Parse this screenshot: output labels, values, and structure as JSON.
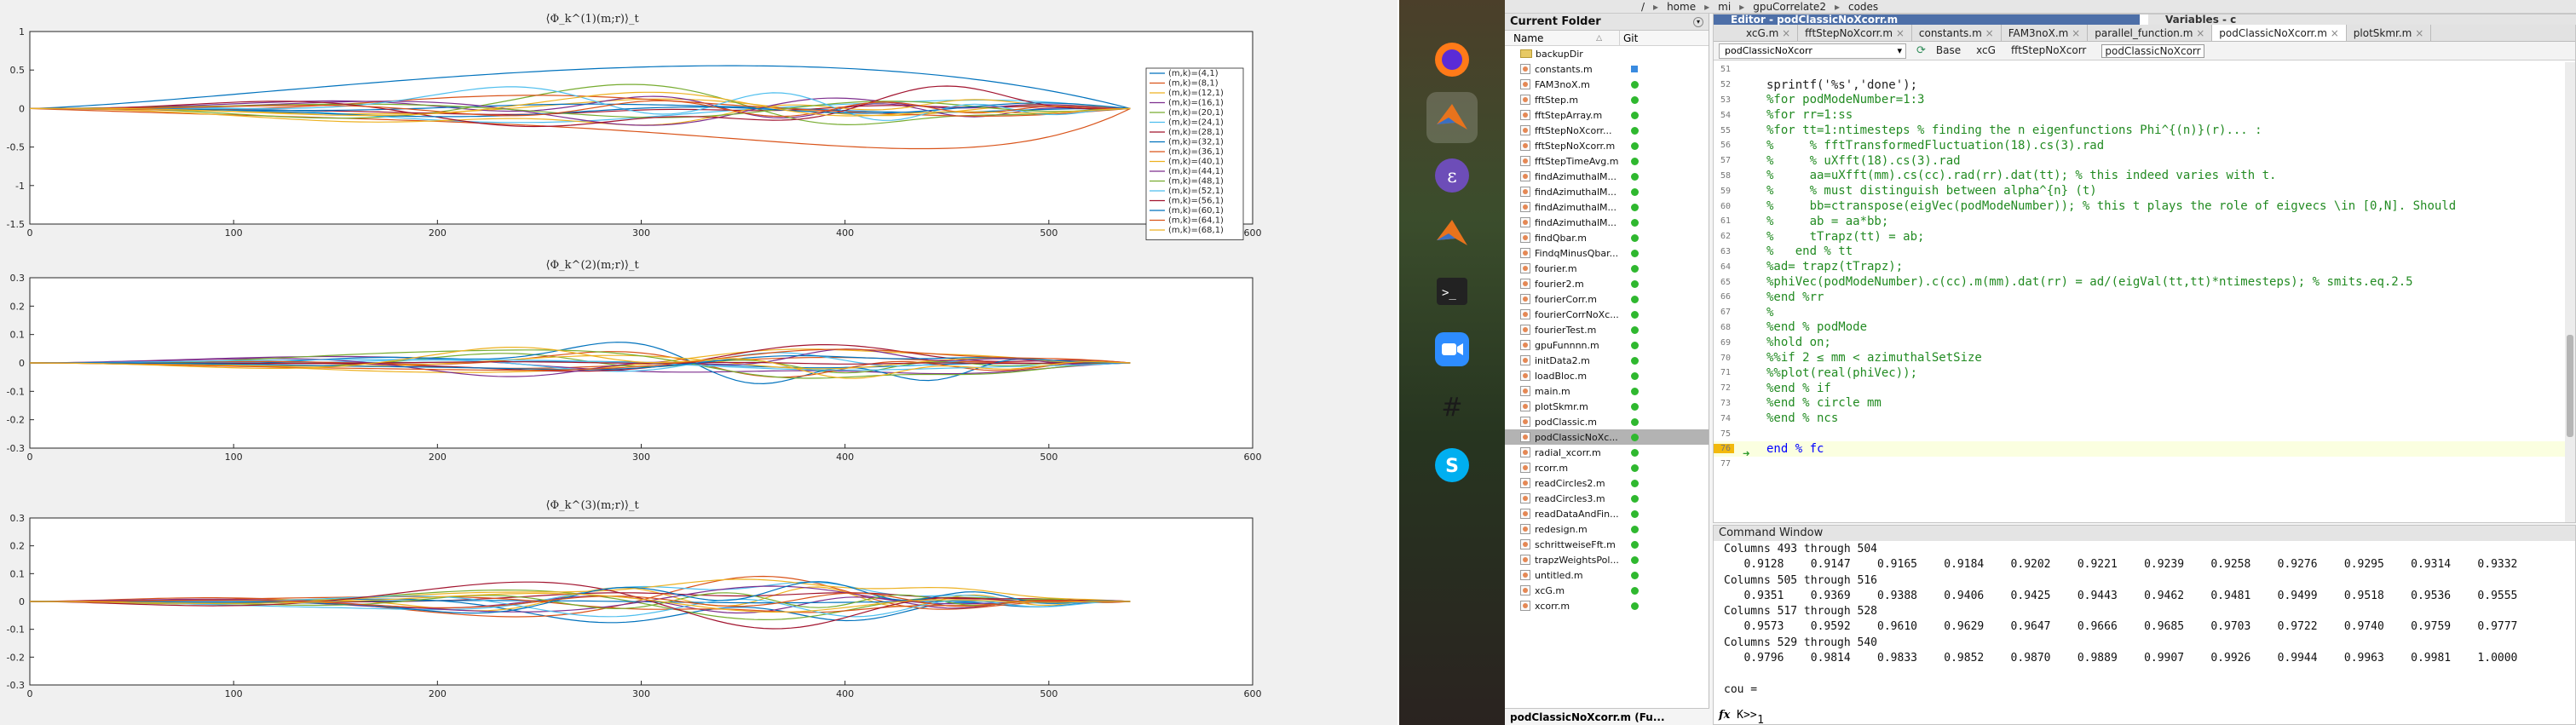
{
  "figure": {
    "axes": [
      {
        "title": "⟨Φ_k^(1)(m;r)⟩_t",
        "yticks": [
          "1",
          "0.5",
          "0",
          "-0.5",
          "-1",
          "-1.5"
        ],
        "xticks": [
          "0",
          "100",
          "200",
          "300",
          "400",
          "500",
          "600"
        ]
      },
      {
        "title": "⟨Φ_k^(2)(m;r)⟩_t",
        "yticks": [
          "0.3",
          "0.2",
          "0.1",
          "0",
          "-0.1",
          "-0.2",
          "-0.3"
        ],
        "xticks": [
          "0",
          "100",
          "200",
          "300",
          "400",
          "500",
          "600"
        ]
      },
      {
        "title": "⟨Φ_k^(3)(m;r)⟩_t",
        "yticks": [
          "0.3",
          "0.2",
          "0.1",
          "0",
          "-0.1",
          "-0.2",
          "-0.3"
        ],
        "xticks": [
          "0",
          "100",
          "200",
          "300",
          "400",
          "500",
          "600"
        ]
      }
    ],
    "legend": [
      "(m,k)=(4,1)",
      "(m,k)=(8,1)",
      "(m,k)=(12,1)",
      "(m,k)=(16,1)",
      "(m,k)=(20,1)",
      "(m,k)=(24,1)",
      "(m,k)=(28,1)",
      "(m,k)=(32,1)",
      "(m,k)=(36,1)",
      "(m,k)=(40,1)",
      "(m,k)=(44,1)",
      "(m,k)=(48,1)",
      "(m,k)=(52,1)",
      "(m,k)=(56,1)",
      "(m,k)=(60,1)",
      "(m,k)=(64,1)",
      "(m,k)=(68,1)"
    ],
    "series_colors": [
      "#0072bd",
      "#d95319",
      "#edb120",
      "#7e2f8e",
      "#77ac30",
      "#4dbeee",
      "#a2142f",
      "#0072bd",
      "#d95319",
      "#edb120",
      "#7e2f8e",
      "#77ac30",
      "#4dbeee",
      "#a2142f",
      "#0072bd",
      "#d95319",
      "#edb120"
    ]
  },
  "dock": {
    "icons": [
      "firefox-icon",
      "matlab-icon",
      "emacs-icon",
      "matlab-icon-2",
      "terminal-icon",
      "zoom-icon",
      "slack-icon",
      "skype-icon"
    ]
  },
  "addressbar": {
    "crumbs": [
      "/",
      "home",
      "mi",
      "gpuCorrelate2",
      "codes"
    ]
  },
  "folder": {
    "title": "Current Folder",
    "col_name": "Name",
    "col_git": "Git",
    "sort_indicator": "△",
    "footer": "podClassicNoXcorr.m (Fu...",
    "files": [
      {
        "name": "backupDir",
        "type": "folder",
        "git": "none"
      },
      {
        "name": "constants.m",
        "type": "file",
        "git": "modified"
      },
      {
        "name": "FAM3noX.m",
        "type": "file",
        "git": "ok"
      },
      {
        "name": "fftStep.m",
        "type": "file",
        "git": "ok"
      },
      {
        "name": "fftStepArray.m",
        "type": "file",
        "git": "ok"
      },
      {
        "name": "fftStepNoXcorr...",
        "type": "file",
        "git": "ok"
      },
      {
        "name": "fftStepNoXcorr.m",
        "type": "file",
        "git": "ok"
      },
      {
        "name": "fftStepTimeAvg.m",
        "type": "file",
        "git": "ok"
      },
      {
        "name": "findAzimuthalM...",
        "type": "file",
        "git": "ok"
      },
      {
        "name": "findAzimuthalM...",
        "type": "file",
        "git": "ok"
      },
      {
        "name": "findAzimuthalM...",
        "type": "file",
        "git": "ok"
      },
      {
        "name": "findAzimuthalM...",
        "type": "file",
        "git": "ok"
      },
      {
        "name": "findQbar.m",
        "type": "file",
        "git": "ok"
      },
      {
        "name": "FindqMinusQbar...",
        "type": "file",
        "git": "ok"
      },
      {
        "name": "fourier.m",
        "type": "file",
        "git": "ok"
      },
      {
        "name": "fourier2.m",
        "type": "file",
        "git": "ok"
      },
      {
        "name": "fourierCorr.m",
        "type": "file",
        "git": "ok"
      },
      {
        "name": "fourierCorrNoXc...",
        "type": "file",
        "git": "ok"
      },
      {
        "name": "fourierTest.m",
        "type": "file",
        "git": "ok"
      },
      {
        "name": "gpuFunnnn.m",
        "type": "file",
        "git": "ok"
      },
      {
        "name": "initData2.m",
        "type": "file",
        "git": "ok"
      },
      {
        "name": "loadBloc.m",
        "type": "file",
        "git": "ok"
      },
      {
        "name": "main.m",
        "type": "file",
        "git": "ok"
      },
      {
        "name": "plotSkmr.m",
        "type": "file",
        "git": "ok"
      },
      {
        "name": "podClassic.m",
        "type": "file",
        "git": "ok"
      },
      {
        "name": "podClassicNoXc...",
        "type": "file",
        "git": "ok",
        "selected": true
      },
      {
        "name": "radial_xcorr.m",
        "type": "file",
        "git": "ok"
      },
      {
        "name": "rcorr.m",
        "type": "file",
        "git": "ok"
      },
      {
        "name": "readCircles2.m",
        "type": "file",
        "git": "ok"
      },
      {
        "name": "readCircles3.m",
        "type": "file",
        "git": "ok"
      },
      {
        "name": "readDataAndFin...",
        "type": "file",
        "git": "ok"
      },
      {
        "name": "redesign.m",
        "type": "file",
        "git": "ok"
      },
      {
        "name": "schrittweiseFft.m",
        "type": "file",
        "git": "ok"
      },
      {
        "name": "trapzWeightsPol...",
        "type": "file",
        "git": "ok"
      },
      {
        "name": "untitled.m",
        "type": "file",
        "git": "ok"
      },
      {
        "name": "xcG.m",
        "type": "file",
        "git": "ok"
      },
      {
        "name": "xcorr.m",
        "type": "file",
        "git": "ok"
      }
    ]
  },
  "editor": {
    "title": "Editor - podClassicNoXcorr.m",
    "variables_title": "Variables - c",
    "tabs": [
      "xcG.m",
      "fftStepNoXcorr.m",
      "constants.m",
      "FAM3noX.m",
      "parallel_function.m",
      "podClassicNoXcorr.m",
      "plotSkmr.m"
    ],
    "active_tab": 5,
    "function_select": "podClassicNoXcorr",
    "nav": [
      "Base",
      "xcG",
      "fftStepNoXcorr",
      "podClassicNoXcorr"
    ],
    "lines": [
      {
        "n": "51",
        "text": "",
        "kind": "code"
      },
      {
        "n": "52",
        "text": "sprintf('%s','done');",
        "kind": "code"
      },
      {
        "n": "53",
        "text": "%for podModeNumber=1:3",
        "kind": "comment"
      },
      {
        "n": "54",
        "text": "%for rr=1:ss",
        "kind": "comment"
      },
      {
        "n": "55",
        "text": "%for tt=1:ntimesteps % finding the n eigenfunctions Phi^{(n)}(r)... :",
        "kind": "comment"
      },
      {
        "n": "56",
        "text": "%     % fftTransformedFluctuation(18).cs(3).rad",
        "kind": "comment"
      },
      {
        "n": "57",
        "text": "%     % uXfft(18).cs(3).rad",
        "kind": "comment"
      },
      {
        "n": "58",
        "text": "%     aa=uXfft(mm).cs(cc).rad(rr).dat(tt); % this indeed varies with t.",
        "kind": "comment"
      },
      {
        "n": "59",
        "text": "%     % must distinguish between alpha^{n} (t)",
        "kind": "comment"
      },
      {
        "n": "60",
        "text": "%     bb=ctranspose(eigVec(podModeNumber)); % this t plays the role of eigvecs \\in [0,N]. Should",
        "kind": "comment"
      },
      {
        "n": "61",
        "text": "%     ab = aa*bb;",
        "kind": "comment"
      },
      {
        "n": "62",
        "text": "%     tTrapz(tt) = ab;",
        "kind": "comment"
      },
      {
        "n": "63",
        "text": "%   end % tt",
        "kind": "comment"
      },
      {
        "n": "64",
        "text": "%ad= trapz(tTrapz);",
        "kind": "comment"
      },
      {
        "n": "65",
        "text": "%phiVec(podModeNumber).c(cc).m(mm).dat(rr) = ad/(eigVal(tt,tt)*ntimesteps); % smits.eq.2.5",
        "kind": "comment"
      },
      {
        "n": "66",
        "text": "%end %rr",
        "kind": "comment"
      },
      {
        "n": "67",
        "text": "%",
        "kind": "comment"
      },
      {
        "n": "68",
        "text": "%end % podMode",
        "kind": "comment"
      },
      {
        "n": "69",
        "text": "%hold on;",
        "kind": "comment"
      },
      {
        "n": "70",
        "text": "%%if 2 ≤ mm < azimuthalSetSize",
        "kind": "comment"
      },
      {
        "n": "71",
        "text": "%%plot(real(phiVec));",
        "kind": "comment"
      },
      {
        "n": "72",
        "text": "%end % if",
        "kind": "comment"
      },
      {
        "n": "73",
        "text": "%end % circle mm",
        "kind": "comment"
      },
      {
        "n": "74",
        "text": "%end % ncs",
        "kind": "comment"
      },
      {
        "n": "75",
        "text": "",
        "kind": "code"
      },
      {
        "n": "76",
        "text": "end % fc",
        "kind": "end"
      },
      {
        "n": "77",
        "text": "",
        "kind": "code"
      }
    ]
  },
  "command": {
    "title": "Command Window",
    "lines": [
      "Columns 493 through 504",
      "   0.9128    0.9147    0.9165    0.9184    0.9202    0.9221    0.9239    0.9258    0.9276    0.9295    0.9314    0.9332",
      "Columns 505 through 516",
      "   0.9351    0.9369    0.9388    0.9406    0.9425    0.9443    0.9462    0.9481    0.9499    0.9518    0.9536    0.9555",
      "Columns 517 through 528",
      "   0.9573    0.9592    0.9610    0.9629    0.9647    0.9666    0.9685    0.9703    0.9722    0.9740    0.9759    0.9777",
      "Columns 529 through 540",
      "   0.9796    0.9814    0.9833    0.9852    0.9870    0.9889    0.9907    0.9926    0.9944    0.9963    0.9981    1.0000",
      "",
      "cou =",
      "",
      "     1"
    ],
    "prompt_symbol": "fx",
    "prompt": "K>>"
  }
}
